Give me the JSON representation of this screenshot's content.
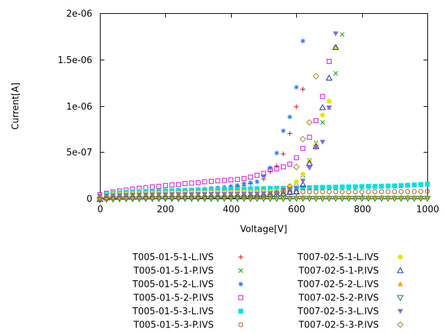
{
  "chart_data": {
    "type": "scatter",
    "title": "",
    "xlabel": "Voltage[V]",
    "ylabel": "Current[A]",
    "xlim": [
      0,
      1000
    ],
    "ylim": [
      0,
      2e-06
    ],
    "grid": false,
    "x_ticks": {
      "values": [
        0,
        200,
        400,
        600,
        800,
        1000
      ],
      "labels": [
        "0",
        "200",
        "400",
        "600",
        "800",
        "1000"
      ]
    },
    "y_ticks": {
      "values": [
        0,
        5e-07,
        1e-06,
        1.5e-06,
        2e-06
      ],
      "labels": [
        "0",
        "5e-07",
        "1e-06",
        "1.5e-06",
        "2e-06"
      ]
    },
    "legend": {
      "position": "below-plot",
      "columns": 2,
      "rows": 6,
      "order": "column-major"
    },
    "current_unit": "1e-7 A (multiply values by 1e-7 to get amps)",
    "v_start": 0,
    "v_step": 20,
    "series": [
      {
        "name": "T005-01-5-1-L.IVS",
        "marker": "plus",
        "color": "#e10000",
        "values": [
          0.05,
          0.15,
          0.25,
          0.3,
          0.35,
          0.4,
          0.45,
          0.5,
          0.55,
          0.6,
          0.65,
          0.7,
          0.75,
          0.8,
          0.85,
          0.9,
          0.95,
          1.0,
          1.05,
          1.1,
          1.2,
          1.3,
          1.4,
          1.6,
          1.8,
          2.1,
          2.9,
          3.5,
          4.8,
          7.0,
          9.9,
          11.8
        ]
      },
      {
        "name": "T005-01-5-1-P.IVS",
        "marker": "cross",
        "color": "#00a000",
        "values": [
          0.15,
          0.1,
          0.12,
          0.14,
          0.16,
          0.18,
          0.2,
          0.22,
          0.24,
          0.25,
          0.26,
          0.28,
          0.3,
          0.3,
          0.32,
          0.33,
          0.34,
          0.35,
          0.36,
          0.37,
          0.38,
          0.4,
          0.41,
          0.42,
          0.44,
          0.46,
          0.5,
          0.55,
          0.65,
          0.9,
          1.7,
          2.5,
          4.1,
          6.0,
          8.2,
          9.8,
          13.5,
          17.7
        ]
      },
      {
        "name": "T005-01-5-2-L.IVS",
        "marker": "asterisk",
        "color": "#1e78ff",
        "values": [
          0.05,
          0.2,
          0.3,
          0.35,
          0.4,
          0.45,
          0.5,
          0.55,
          0.6,
          0.65,
          0.7,
          0.75,
          0.8,
          0.85,
          0.9,
          0.95,
          1.0,
          1.1,
          1.15,
          1.2,
          1.3,
          1.4,
          1.6,
          1.7,
          1.8,
          2.4,
          3.3,
          4.9,
          7.3,
          8.8,
          12.0,
          17.0
        ]
      },
      {
        "name": "T005-01-5-2-P.IVS",
        "marker": "square-open",
        "color": "#dd00dd",
        "values": [
          0.4,
          0.55,
          0.7,
          0.8,
          0.9,
          1.0,
          1.1,
          1.15,
          1.25,
          1.3,
          1.4,
          1.45,
          1.5,
          1.6,
          1.65,
          1.7,
          1.8,
          1.85,
          1.9,
          1.95,
          2.0,
          2.05,
          2.15,
          2.3,
          2.5,
          2.7,
          3.1,
          3.2,
          3.4,
          3.7,
          4.4,
          5.4,
          6.6,
          8.4,
          11.0,
          14.8
        ]
      },
      {
        "name": "T005-01-5-3-L.IVS",
        "marker": "square-filled",
        "color": "#00e0e0",
        "values": [
          0.3,
          0.45,
          0.55,
          0.6,
          0.65,
          0.7,
          0.72,
          0.75,
          0.78,
          0.8,
          0.82,
          0.84,
          0.86,
          0.88,
          0.9,
          0.92,
          0.93,
          0.95,
          0.96,
          0.98,
          1.0,
          1.0,
          1.02,
          1.04,
          1.05,
          1.06,
          1.08,
          1.1,
          1.1,
          1.12,
          1.14,
          1.15,
          1.16,
          1.18,
          1.2,
          1.2,
          1.22,
          1.24,
          1.25,
          1.26,
          1.28,
          1.3,
          1.3,
          1.32,
          1.34,
          1.35,
          1.38,
          1.42,
          1.45,
          1.5,
          1.55
        ]
      },
      {
        "name": "T005-01-5-3-P.IVS",
        "marker": "circle-open",
        "color": "#c05010",
        "values": [
          0.2,
          0.3,
          0.38,
          0.42,
          0.46,
          0.5,
          0.52,
          0.55,
          0.57,
          0.6,
          0.6,
          0.62,
          0.63,
          0.64,
          0.65,
          0.65,
          0.66,
          0.66,
          0.67,
          0.67,
          0.68,
          0.68,
          0.68,
          0.69,
          0.69,
          0.7,
          0.7,
          0.7,
          0.7,
          0.7,
          0.71,
          0.71,
          0.71,
          0.71,
          0.72,
          0.72,
          0.72,
          0.72,
          0.72,
          0.72,
          0.72,
          0.72,
          0.72,
          0.73,
          0.73,
          0.73,
          0.73,
          0.74,
          0.74,
          0.75,
          0.78
        ]
      },
      {
        "name": "T007-02-5-1-L.IVS",
        "marker": "circle-filled",
        "color": "#e6e600",
        "values": [
          0.3,
          0.38,
          0.42,
          0.45,
          0.47,
          0.5,
          0.52,
          0.54,
          0.55,
          0.57,
          0.58,
          0.6,
          0.6,
          0.61,
          0.62,
          0.63,
          0.63,
          0.64,
          0.65,
          0.65,
          0.66,
          0.66,
          0.67,
          0.68,
          0.68,
          0.7,
          0.72,
          0.78,
          0.9,
          1.3,
          1.8,
          2.6,
          4.0,
          5.8,
          9.0,
          10.5,
          16.3
        ]
      },
      {
        "name": "T007-02-5-1-P.IVS",
        "marker": "triangle-up-open",
        "color": "#2020b0",
        "values": [
          -0.1,
          0.05,
          0.1,
          0.12,
          0.14,
          0.15,
          0.16,
          0.17,
          0.18,
          0.19,
          0.2,
          0.2,
          0.21,
          0.22,
          0.22,
          0.23,
          0.24,
          0.24,
          0.25,
          0.25,
          0.26,
          0.27,
          0.28,
          0.3,
          0.32,
          0.35,
          0.4,
          0.45,
          0.55,
          0.65,
          0.7,
          1.5,
          3.8,
          5.6,
          9.8,
          13.0,
          16.3
        ]
      },
      {
        "name": "T007-02-5-2-L.IVS",
        "marker": "triangle-up-filled",
        "color": "#ffa000",
        "values": [
          0.02,
          0.04,
          0.05,
          0.06,
          0.07,
          0.07,
          0.08,
          0.08,
          0.08,
          0.09,
          0.09,
          0.09,
          0.09,
          0.1,
          0.1,
          0.1,
          0.1,
          0.1,
          0.1,
          0.1,
          0.1,
          0.1,
          0.11,
          0.11,
          0.11,
          0.11,
          0.11,
          0.11,
          0.11,
          0.11,
          0.12,
          0.12,
          0.12,
          0.12,
          0.12,
          0.12,
          0.12,
          0.12,
          0.12,
          0.12,
          0.12,
          0.12,
          0.12,
          0.12,
          0.12,
          0.12,
          0.12,
          0.12,
          0.12,
          0.12,
          0.12
        ]
      },
      {
        "name": "T007-02-5-2-P.IVS",
        "marker": "triangle-down-open",
        "color": "#008040",
        "values": [
          -0.15,
          -0.1,
          -0.08,
          -0.05,
          -0.05,
          -0.04,
          -0.04,
          -0.03,
          -0.03,
          -0.03,
          -0.02,
          -0.02,
          -0.02,
          -0.02,
          -0.02,
          -0.02,
          -0.02,
          -0.02,
          -0.02,
          -0.02,
          -0.02,
          -0.02,
          -0.02,
          -0.02,
          -0.02,
          -0.02,
          -0.02,
          -0.02,
          -0.02,
          -0.02,
          0.0,
          0.0,
          0.0,
          0.0,
          0.0,
          0.0,
          0.0,
          0.0,
          0.0,
          0.0,
          0.0,
          0.0,
          0.0,
          0.0,
          0.0,
          0.0,
          0.0,
          0.0,
          0.0,
          0.0,
          0.0
        ]
      },
      {
        "name": "T007-02-5-3-L.IVS",
        "marker": "triangle-down-filled",
        "color": "#8866dd",
        "values": [
          0.25,
          0.3,
          0.33,
          0.35,
          0.36,
          0.38,
          0.39,
          0.4,
          0.41,
          0.42,
          0.42,
          0.43,
          0.43,
          0.44,
          0.44,
          0.45,
          0.45,
          0.45,
          0.46,
          0.46,
          0.47,
          0.47,
          0.48,
          0.49,
          0.5,
          0.52,
          0.55,
          0.6,
          0.9,
          1.0,
          1.1,
          1.9,
          3.3,
          5.5,
          6.1,
          9.8,
          17.8
        ]
      },
      {
        "name": "T007-02-5-3-P.IVS",
        "marker": "diamond-open",
        "color": "#a08020",
        "values": [
          0.05,
          0.08,
          0.1,
          0.1,
          0.12,
          0.12,
          0.14,
          0.14,
          0.15,
          0.15,
          0.16,
          0.16,
          0.17,
          0.17,
          0.18,
          0.18,
          0.19,
          0.2,
          0.2,
          0.21,
          0.22,
          0.23,
          0.24,
          0.25,
          0.27,
          0.3,
          0.4,
          0.6,
          0.8,
          1.3,
          3.4,
          6.4,
          8.2,
          13.2
        ]
      }
    ],
    "colors": {
      "axis": "#000000",
      "background": "#ffffff"
    }
  }
}
